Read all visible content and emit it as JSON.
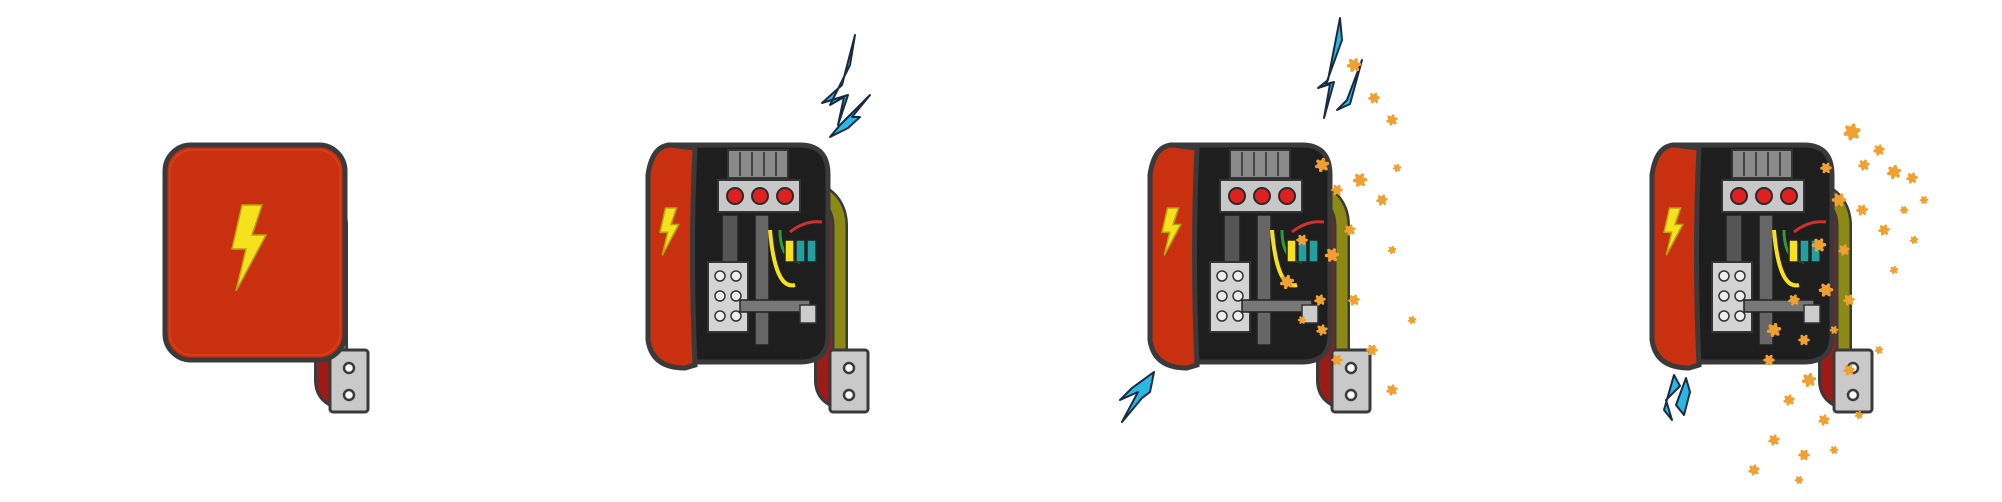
{
  "scene": {
    "description_tags": [
      "electrical-box-illustration-sequence"
    ],
    "frames": [
      {
        "id": "closed-box",
        "state": "closed",
        "sparks": "none",
        "splatter": "none"
      },
      {
        "id": "open-box",
        "state": "open",
        "sparks": "top",
        "splatter": "none"
      },
      {
        "id": "sparking-box",
        "state": "open",
        "sparks": "top-and-bottom",
        "splatter": "light"
      },
      {
        "id": "burning-box",
        "state": "open",
        "sparks": "bottom",
        "splatter": "heavy"
      }
    ]
  },
  "colors": {
    "box_red": "#c83010",
    "box_outline": "#3a3a3a",
    "bolt_yellow": "#f6e21c",
    "cable_olive": "#8c8a14",
    "cable_dark_red": "#9c1a18",
    "connector_grey": "#c9c9c9",
    "interior_black": "#1e1e1e",
    "panel_grey": "#8a8a8a",
    "light_red": "#e02020",
    "wire_green": "#2e9a3a",
    "wire_teal": "#22a0a0",
    "spark_blue": "#29b8e6",
    "splatter_orange": "#f0a030"
  },
  "icons": [
    "lightning-bolt-icon",
    "spark-icon",
    "splatter-icon",
    "connector-icon"
  ]
}
